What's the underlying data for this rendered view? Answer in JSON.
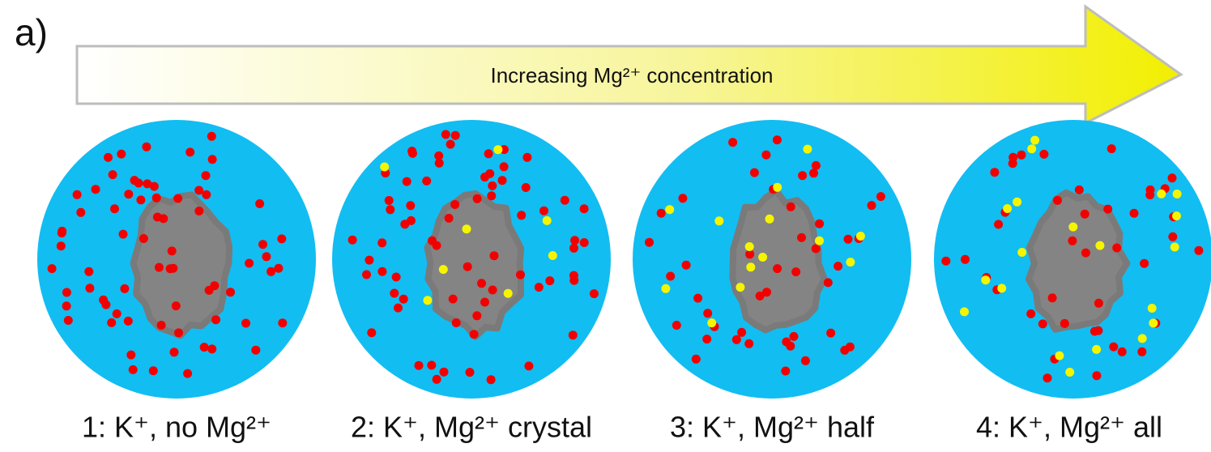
{
  "label": "a)",
  "arrow": {
    "text": "Increasing Mg²⁺ concentration"
  },
  "panels": [
    {
      "caption": "1: K⁺, no Mg²⁺"
    },
    {
      "caption": "2: K⁺, Mg²⁺ crystal"
    },
    {
      "caption": "3: K⁺, Mg²⁺ half"
    },
    {
      "caption": "4: K⁺, Mg²⁺ all"
    }
  ]
}
